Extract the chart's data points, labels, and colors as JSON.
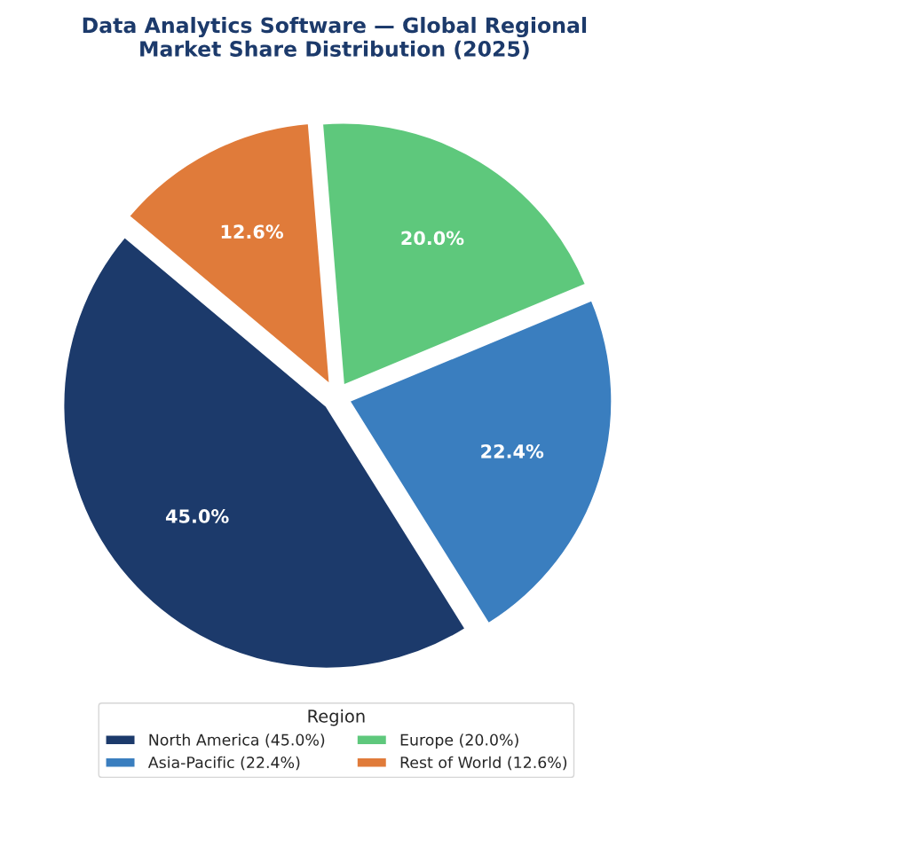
{
  "chart_data": {
    "type": "pie",
    "title": "Data Analytics Software — Global Regional\nMarket Share Distribution (2025)",
    "categories": [
      "North America (45.0%)",
      "Asia-Pacific (22.4%)",
      "Europe (20.0%)",
      "Rest of World (12.6%)"
    ],
    "values": [
      45.0,
      22.4,
      20.0,
      12.6
    ],
    "value_labels": [
      "45.0%",
      "22.4%",
      "20.0%",
      "12.6%"
    ],
    "colors": [
      "#1c3a6b",
      "#3a7ebf",
      "#5ec87c",
      "#e07b3a"
    ],
    "legend_title": "Region",
    "legend": "bottom"
  }
}
